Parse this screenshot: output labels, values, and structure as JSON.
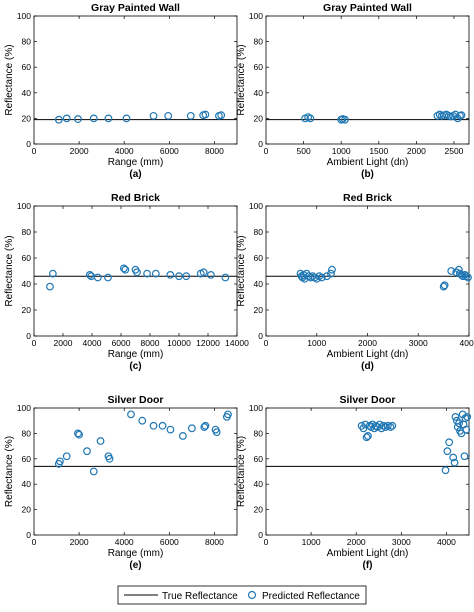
{
  "legend": {
    "true_label": "True Reflectance",
    "pred_label": "Predicted Reflectance"
  },
  "colors": {
    "marker": "#1f77b4",
    "true_line": "#000000",
    "axis": "#000000"
  },
  "chart_data": [
    {
      "id": "a",
      "type": "scatter",
      "title": "Gray Painted Wall",
      "xlabel": "Range (mm)",
      "ylabel": "Reflectance (%)",
      "panel_label": "(a)",
      "xlim": [
        0,
        9000
      ],
      "ylim": [
        0,
        100
      ],
      "xticks": [
        0,
        2000,
        4000,
        6000,
        8000
      ],
      "yticks": [
        0,
        20,
        40,
        60,
        80,
        100
      ],
      "true_value": 19,
      "series": [
        {
          "name": "Predicted Reflectance",
          "points": [
            [
              1100,
              19
            ],
            [
              1450,
              20
            ],
            [
              1950,
              19.5
            ],
            [
              2650,
              20
            ],
            [
              3300,
              20
            ],
            [
              4100,
              20
            ],
            [
              5300,
              22
            ],
            [
              5950,
              22
            ],
            [
              6950,
              22
            ],
            [
              7500,
              22.5
            ],
            [
              7600,
              23
            ],
            [
              8200,
              22
            ],
            [
              8300,
              22.5
            ]
          ]
        }
      ]
    },
    {
      "id": "b",
      "type": "scatter",
      "title": "Gray Painted Wall",
      "xlabel": "Ambient Light (dn)",
      "ylabel": "Reflectance (%)",
      "panel_label": "(b)",
      "xlim": [
        0,
        2700
      ],
      "ylim": [
        0,
        100
      ],
      "xticks": [
        0,
        500,
        1000,
        1500,
        2000,
        2500
      ],
      "yticks": [
        0,
        20,
        40,
        60,
        80,
        100
      ],
      "true_value": 19,
      "series": [
        {
          "name": "Predicted Reflectance",
          "points": [
            [
              520,
              20
            ],
            [
              560,
              21
            ],
            [
              590,
              20
            ],
            [
              1000,
              19
            ],
            [
              1020,
              19.5
            ],
            [
              1050,
              19
            ],
            [
              2280,
              22
            ],
            [
              2310,
              23
            ],
            [
              2340,
              22
            ],
            [
              2370,
              22.5
            ],
            [
              2400,
              23
            ],
            [
              2430,
              22
            ],
            [
              2460,
              21.5
            ],
            [
              2490,
              22
            ],
            [
              2520,
              23
            ],
            [
              2550,
              20
            ],
            [
              2580,
              22
            ],
            [
              2600,
              22.5
            ]
          ]
        }
      ]
    },
    {
      "id": "c",
      "type": "scatter",
      "title": "Red Brick",
      "xlabel": "Range (mm)",
      "ylabel": "Reflectance (%)",
      "panel_label": "(c)",
      "xlim": [
        0,
        14000
      ],
      "ylim": [
        0,
        100
      ],
      "xticks": [
        0,
        2000,
        4000,
        6000,
        8000,
        10000,
        12000,
        14000
      ],
      "yticks": [
        0,
        20,
        40,
        60,
        80,
        100
      ],
      "true_value": 46,
      "series": [
        {
          "name": "Predicted Reflectance",
          "points": [
            [
              1100,
              38
            ],
            [
              1300,
              48
            ],
            [
              3850,
              47
            ],
            [
              3950,
              46
            ],
            [
              4400,
              45
            ],
            [
              5100,
              45
            ],
            [
              6200,
              52
            ],
            [
              6300,
              51
            ],
            [
              7000,
              51
            ],
            [
              7100,
              49
            ],
            [
              7800,
              48
            ],
            [
              8400,
              48
            ],
            [
              9400,
              47
            ],
            [
              10000,
              46
            ],
            [
              10500,
              46
            ],
            [
              11500,
              48
            ],
            [
              11700,
              49
            ],
            [
              12200,
              47
            ],
            [
              13200,
              45
            ]
          ]
        }
      ]
    },
    {
      "id": "d",
      "type": "scatter",
      "title": "Red Brick",
      "xlabel": "Ambient Light (dn)",
      "ylabel": "Reflectance (%)",
      "panel_label": "(d)",
      "xlim": [
        0,
        4000
      ],
      "ylim": [
        0,
        100
      ],
      "xticks": [
        0,
        1000,
        2000,
        3000,
        4000
      ],
      "yticks": [
        0,
        20,
        40,
        60,
        80,
        100
      ],
      "true_value": 46,
      "series": [
        {
          "name": "Predicted Reflectance",
          "points": [
            [
              680,
              48
            ],
            [
              700,
              46
            ],
            [
              720,
              45
            ],
            [
              740,
              47
            ],
            [
              760,
              44
            ],
            [
              800,
              48
            ],
            [
              840,
              46
            ],
            [
              880,
              45
            ],
            [
              920,
              46
            ],
            [
              960,
              45
            ],
            [
              1000,
              44
            ],
            [
              1050,
              46
            ],
            [
              1100,
              45
            ],
            [
              1200,
              46
            ],
            [
              1280,
              48
            ],
            [
              1300,
              51
            ],
            [
              3500,
              38
            ],
            [
              3520,
              39
            ],
            [
              3650,
              50
            ],
            [
              3750,
              49
            ],
            [
              3800,
              51
            ],
            [
              3820,
              48
            ],
            [
              3850,
              47
            ],
            [
              3880,
              46
            ],
            [
              3920,
              47
            ],
            [
              3950,
              46
            ],
            [
              3980,
              45
            ]
          ]
        }
      ]
    },
    {
      "id": "e",
      "type": "scatter",
      "title": "Silver Door",
      "xlabel": "Range (mm)",
      "ylabel": "Reflectance (%)",
      "panel_label": "(e)",
      "xlim": [
        0,
        9000
      ],
      "ylim": [
        0,
        100
      ],
      "xticks": [
        0,
        2000,
        4000,
        6000,
        8000
      ],
      "yticks": [
        0,
        20,
        40,
        60,
        80,
        100
      ],
      "true_value": 54,
      "series": [
        {
          "name": "Predicted Reflectance",
          "points": [
            [
              1100,
              56
            ],
            [
              1150,
              58
            ],
            [
              1450,
              62
            ],
            [
              1950,
              80
            ],
            [
              2000,
              79
            ],
            [
              2350,
              66
            ],
            [
              2650,
              50
            ],
            [
              2950,
              74
            ],
            [
              3300,
              62
            ],
            [
              3350,
              60
            ],
            [
              4300,
              95
            ],
            [
              4800,
              90
            ],
            [
              5300,
              86
            ],
            [
              5700,
              86
            ],
            [
              6050,
              83
            ],
            [
              6600,
              78
            ],
            [
              7000,
              84
            ],
            [
              7550,
              85
            ],
            [
              7600,
              86
            ],
            [
              8050,
              83
            ],
            [
              8100,
              81
            ],
            [
              8550,
              93
            ],
            [
              8600,
              95
            ]
          ]
        }
      ]
    },
    {
      "id": "f",
      "type": "scatter",
      "title": "Silver Door",
      "xlabel": "Ambient Light (dn)",
      "ylabel": "Reflectance (%)",
      "panel_label": "(f)",
      "xlim": [
        0,
        4500
      ],
      "ylim": [
        0,
        100
      ],
      "xticks": [
        0,
        1000,
        2000,
        3000,
        4000
      ],
      "yticks": [
        0,
        20,
        40,
        60,
        80,
        100
      ],
      "true_value": 54,
      "series": [
        {
          "name": "Predicted Reflectance",
          "points": [
            [
              2120,
              86
            ],
            [
              2160,
              84
            ],
            [
              2200,
              87
            ],
            [
              2230,
              77
            ],
            [
              2260,
              78
            ],
            [
              2300,
              86
            ],
            [
              2330,
              85
            ],
            [
              2360,
              87
            ],
            [
              2400,
              84
            ],
            [
              2430,
              86
            ],
            [
              2470,
              85
            ],
            [
              2520,
              87
            ],
            [
              2560,
              84
            ],
            [
              2600,
              86
            ],
            [
              2650,
              85
            ],
            [
              2700,
              86
            ],
            [
              2760,
              85
            ],
            [
              2800,
              86
            ],
            [
              3980,
              51
            ],
            [
              4020,
              66
            ],
            [
              4060,
              73
            ],
            [
              4150,
              61
            ],
            [
              4180,
              57
            ],
            [
              4200,
              93
            ],
            [
              4230,
              90
            ],
            [
              4250,
              85
            ],
            [
              4280,
              88
            ],
            [
              4300,
              82
            ],
            [
              4330,
              80
            ],
            [
              4360,
              95
            ],
            [
              4380,
              87
            ],
            [
              4400,
              62
            ],
            [
              4420,
              92
            ],
            [
              4440,
              83
            ],
            [
              4460,
              93
            ]
          ]
        }
      ]
    }
  ]
}
